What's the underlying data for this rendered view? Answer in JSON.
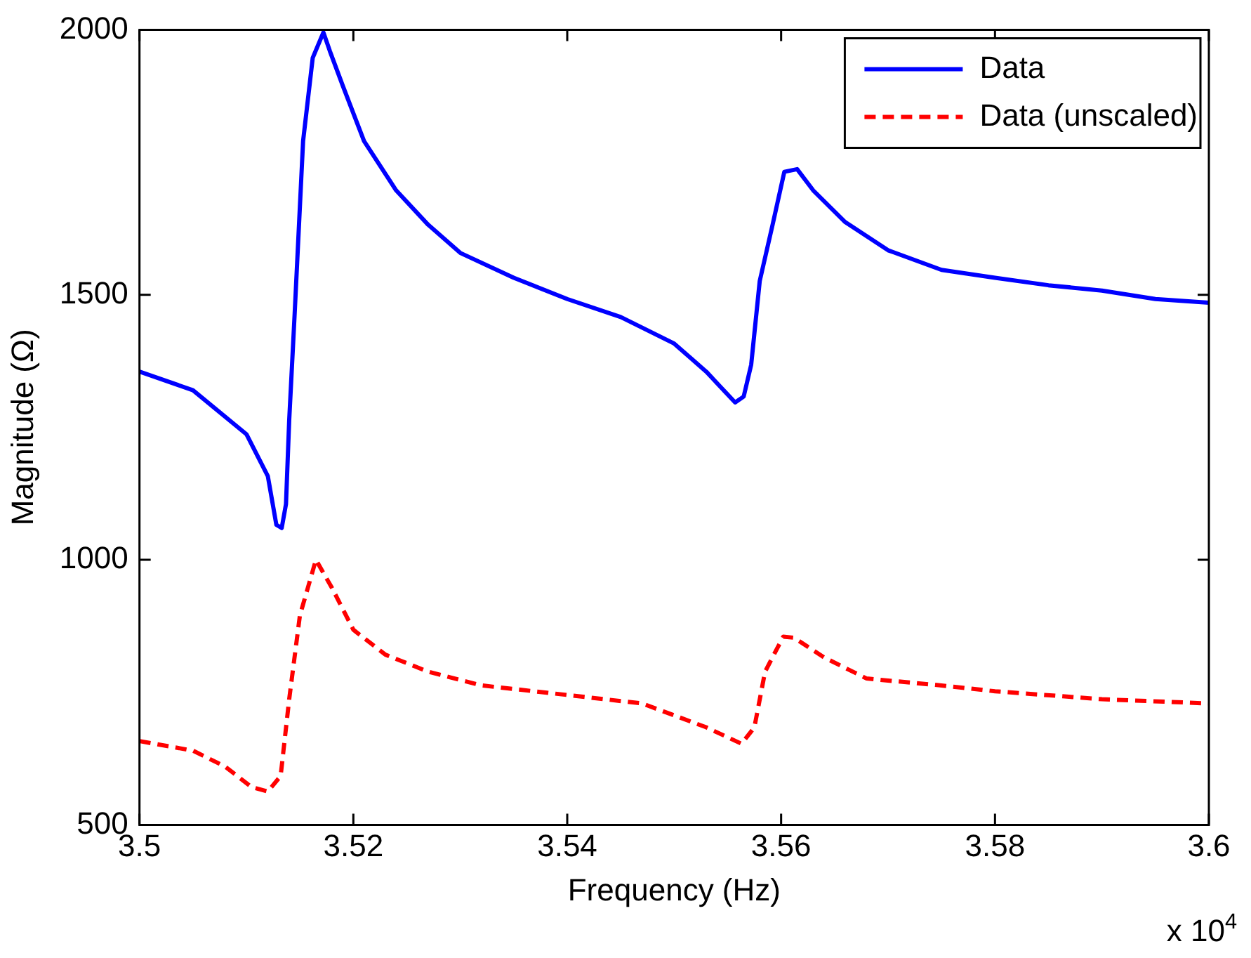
{
  "chart_data": {
    "type": "line",
    "xlabel": "Frequency (Hz)",
    "ylabel": "Magnitude (Ω)",
    "xlim": [
      3.5,
      3.6
    ],
    "ylim": [
      500,
      2000
    ],
    "xticks": [
      3.5,
      3.52,
      3.54,
      3.56,
      3.58,
      3.6
    ],
    "yticks": [
      500,
      1000,
      1500,
      2000
    ],
    "grid": false,
    "legend": "top right",
    "marker": "none",
    "annotations": [
      "x 10$^{4}$"
    ],
    "series": [
      {
        "name": "Data",
        "color": "#0000ff",
        "line_style": "solid",
        "x": [
          3.5,
          3.505,
          3.51,
          3.512,
          3.5128,
          3.5133,
          3.5137,
          3.514,
          3.5145,
          3.5153,
          3.5162,
          3.5172,
          3.5178,
          3.519,
          3.521,
          3.524,
          3.527,
          3.53,
          3.535,
          3.54,
          3.545,
          3.55,
          3.553,
          3.5557,
          3.5565,
          3.5572,
          3.558,
          3.5592,
          3.5603,
          3.5615,
          3.563,
          3.566,
          3.57,
          3.575,
          3.58,
          3.585,
          3.59,
          3.595,
          3.6
        ],
        "values": [
          1355,
          1320,
          1237,
          1158,
          1066,
          1060,
          1105,
          1263,
          1460,
          1790,
          1947,
          1995,
          1960,
          1895,
          1790,
          1697,
          1632,
          1579,
          1532,
          1492,
          1458,
          1408,
          1355,
          1297,
          1308,
          1368,
          1526,
          1632,
          1732,
          1737,
          1697,
          1637,
          1584,
          1547,
          1532,
          1518,
          1508,
          1492,
          1485
        ]
      },
      {
        "name": "Data (unscaled)",
        "color": "#ff0000",
        "line_style": "dashed",
        "x": [
          3.5,
          3.505,
          3.508,
          3.5105,
          3.512,
          3.5132,
          3.514,
          3.515,
          3.5165,
          3.518,
          3.52,
          3.523,
          3.527,
          3.532,
          3.54,
          3.547,
          3.553,
          3.5563,
          3.5575,
          3.5585,
          3.5602,
          3.5612,
          3.564,
          3.568,
          3.575,
          3.58,
          3.59,
          3.6
        ],
        "values": [
          658,
          640,
          610,
          571,
          563,
          592,
          737,
          895,
          1000,
          947,
          868,
          821,
          789,
          763,
          745,
          729,
          684,
          653,
          684,
          789,
          855,
          853,
          816,
          776,
          763,
          752,
          737,
          729
        ]
      }
    ]
  }
}
